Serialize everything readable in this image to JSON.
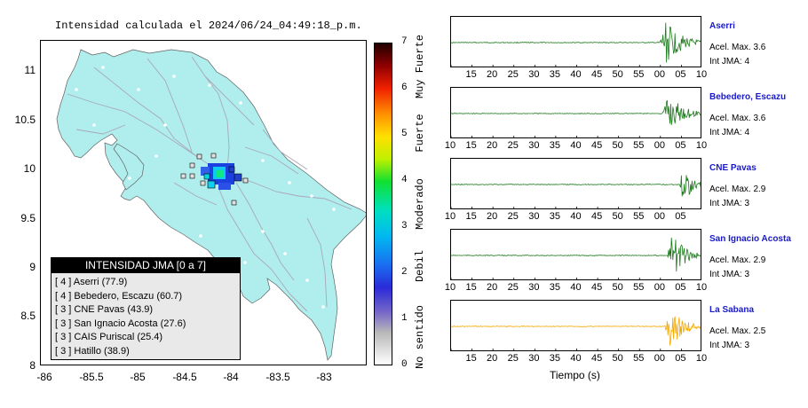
{
  "map": {
    "title": "Intensidad calculada el 2024/06/24_04:49:18_p.m.",
    "y_ticks": [
      "11",
      "10.5",
      "10",
      "9.5",
      "9",
      "8.5",
      "8"
    ],
    "x_ticks": [
      "-86",
      "-85.5",
      "-85",
      "-84.5",
      "-84",
      "-83.5",
      "-83"
    ],
    "lon_range": [
      -86,
      -82.5
    ],
    "lat_range": [
      8,
      11.3
    ],
    "land_color": "#b0eded",
    "road_color": "#a8a8b8"
  },
  "legend": {
    "title": "INTENSIDAD JMA [0 a 7]",
    "items": [
      {
        "level": "[ 4 ]",
        "text": "Aserri (77.9)"
      },
      {
        "level": "[ 4 ]",
        "text": "Bebedero, Escazu (60.7)"
      },
      {
        "level": "[ 3 ]",
        "text": "CNE Pavas (43.9)"
      },
      {
        "level": "[ 3 ]",
        "text": "San Ignacio Acosta (27.6)"
      },
      {
        "level": "[ 3 ]",
        "text": "CAIS Puriscal (25.4)"
      },
      {
        "level": "[ 3 ]",
        "text": "Hatillo (38.9)"
      }
    ]
  },
  "colorbar": {
    "ticks": [
      "0",
      "1",
      "2",
      "3",
      "4",
      "5",
      "6",
      "7"
    ],
    "categories": [
      "No sentido",
      "Debil",
      "Moderado",
      "Fuerte",
      "Muy Fuerte"
    ]
  },
  "waveforms": {
    "time_axis_label": "Tiempo (s)",
    "stations": [
      {
        "name": "Aserri",
        "acel": "Acel. Max. 3.6",
        "int": "Int JMA: 4",
        "color": "#1a7a1a",
        "onset": 0.83,
        "amp": 0.95,
        "ticks": [
          "",
          "15",
          "20",
          "25",
          "30",
          "35",
          "40",
          "45",
          "50",
          "55",
          "00",
          "05",
          "10"
        ]
      },
      {
        "name": "Bebedero, Escazu",
        "acel": "Acel. Max. 3.6",
        "int": "Int JMA: 4",
        "color": "#1a7a1a",
        "onset": 0.84,
        "amp": 0.9,
        "ticks": [
          "10",
          "15",
          "20",
          "25",
          "30",
          "35",
          "40",
          "45",
          "50",
          "55",
          "00",
          "05",
          "10"
        ]
      },
      {
        "name": "CNE Pavas",
        "acel": "Acel. Max. 2.9",
        "int": "Int JMA: 3",
        "color": "#1a7a1a",
        "onset": 0.91,
        "amp": 0.95,
        "ticks": [
          "10",
          "15",
          "20",
          "25",
          "30",
          "35",
          "40",
          "45",
          "50",
          "55",
          "00",
          "05",
          ""
        ]
      },
      {
        "name": "San Ignacio Acosta",
        "acel": "Acel. Max. 2.9",
        "int": "Int JMA: 3",
        "color": "#1a7a1a",
        "onset": 0.86,
        "amp": 0.95,
        "ticks": [
          "10",
          "15",
          "20",
          "25",
          "30",
          "35",
          "40",
          "45",
          "50",
          "55",
          "00",
          "05",
          "10"
        ]
      },
      {
        "name": "La Sabana",
        "acel": "Acel. Max. 2.5",
        "int": "Int JMA: 3",
        "color": "#f4a800",
        "onset": 0.85,
        "amp": 0.95,
        "ticks": [
          "",
          "15",
          "20",
          "25",
          "30",
          "35",
          "40",
          "45",
          "50",
          "55",
          "00",
          "05",
          "10"
        ]
      }
    ]
  }
}
